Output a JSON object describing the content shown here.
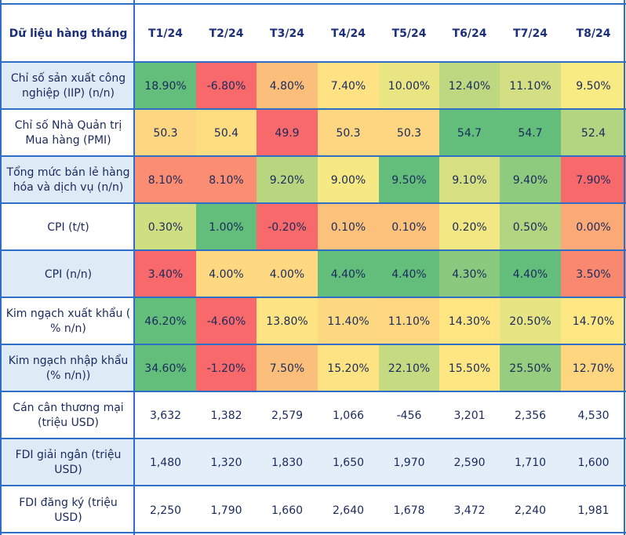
{
  "chart_data": {
    "type": "table",
    "corner_label": "Dữ liệu hàng tháng",
    "columns": [
      "T1/24",
      "T2/24",
      "T3/24",
      "T4/24",
      "T5/24",
      "T6/24",
      "T7/24",
      "T8/24"
    ],
    "rows": [
      {
        "label": "Chỉ số sản xuất công nghiệp (IIP) (n/n)",
        "values": [
          "18.90%",
          "-6.80%",
          "4.80%",
          "7.40%",
          "10.00%",
          "12.40%",
          "11.10%",
          "9.50%"
        ],
        "colors": [
          "#63be7b",
          "#f8696b",
          "#fcbf7b",
          "#ffe283",
          "#e9e583",
          "#bdd881",
          "#d3df82",
          "#f9eb84"
        ]
      },
      {
        "label": "Chỉ số Nhà Quản trị Mua hàng (PMI)",
        "values": [
          "50.3",
          "50.4",
          "49.9",
          "50.3",
          "50.3",
          "54.7",
          "54.7",
          "52.4"
        ],
        "colors": [
          "#fed580",
          "#fedd81",
          "#f8696b",
          "#fed580",
          "#fed580",
          "#63be7b",
          "#63be7b",
          "#b1d580"
        ]
      },
      {
        "label": "Tổng mức bán lẻ hàng hóa và dịch vụ (n/n)",
        "values": [
          "8.10%",
          "8.10%",
          "9.20%",
          "9.00%",
          "9.50%",
          "9.10%",
          "9.40%",
          "7.90%"
        ],
        "colors": [
          "#fa8d72",
          "#fa8d72",
          "#b8d680",
          "#f6e983",
          "#63be7b",
          "#d6e082",
          "#8ecb7e",
          "#f8696b"
        ]
      },
      {
        "label": "CPI (t/t)",
        "values": [
          "0.30%",
          "1.00%",
          "-0.20%",
          "0.10%",
          "0.10%",
          "0.20%",
          "0.50%",
          "0.00%"
        ],
        "colors": [
          "#d0de82",
          "#63be7b",
          "#f8696b",
          "#fcc27c",
          "#fcc27c",
          "#f1e883",
          "#b1d580",
          "#fba977"
        ]
      },
      {
        "label": "CPI (n/n)",
        "values": [
          "3.40%",
          "4.00%",
          "4.00%",
          "4.40%",
          "4.40%",
          "4.30%",
          "4.40%",
          "3.50%"
        ],
        "colors": [
          "#f8696b",
          "#fed981",
          "#fed981",
          "#63be7b",
          "#63be7b",
          "#8bca7e",
          "#63be7b",
          "#f98870"
        ]
      },
      {
        "label": "Kim ngạch xuất khẩu ( % n/n)",
        "values": [
          "46.20%",
          "-4.60%",
          "13.80%",
          "11.40%",
          "11.10%",
          "14.30%",
          "20.50%",
          "14.70%"
        ],
        "colors": [
          "#63be7b",
          "#f8696b",
          "#fee482",
          "#fed981",
          "#fed780",
          "#ffe683",
          "#e6e483",
          "#fee883"
        ]
      },
      {
        "label": "Kim ngạch nhập khẩu (% n/n))",
        "values": [
          "34.60%",
          "-1.20%",
          "7.50%",
          "15.20%",
          "22.10%",
          "15.50%",
          "25.50%",
          "12.70%"
        ],
        "colors": [
          "#63be7b",
          "#f8696b",
          "#fcbf7b",
          "#fee382",
          "#c6da81",
          "#fee683",
          "#96cd7e",
          "#fed680"
        ]
      },
      {
        "label": "Cán cân thương mại (triệu USD)",
        "values": [
          "3,632",
          "1,382",
          "2,579",
          "1,066",
          "-456",
          "3,201",
          "2,356",
          "4,530"
        ],
        "colors": [
          "#ffffff",
          "#ffffff",
          "#ffffff",
          "#ffffff",
          "#ffffff",
          "#ffffff",
          "#ffffff",
          "#ffffff"
        ]
      },
      {
        "label": "FDI giải ngân (triệu USD)",
        "values": [
          "1,480",
          "1,320",
          "1,830",
          "1,650",
          "1,970",
          "2,590",
          "1,710",
          "1,600"
        ],
        "colors": [
          "#e3eef9",
          "#e3eef9",
          "#e3eef9",
          "#e3eef9",
          "#e3eef9",
          "#e3eef9",
          "#e3eef9",
          "#e3eef9"
        ]
      },
      {
        "label": "FDI đăng ký (triệu USD)",
        "values": [
          "2,250",
          "1,790",
          "1,660",
          "2,640",
          "1,678",
          "3,472",
          "2,240",
          "1,981"
        ],
        "colors": [
          "#ffffff",
          "#ffffff",
          "#ffffff",
          "#ffffff",
          "#ffffff",
          "#ffffff",
          "#ffffff",
          "#ffffff"
        ]
      }
    ],
    "label_colors": [
      "#deeaf6",
      "#ffffff",
      "#deeaf6",
      "#ffffff",
      "#deeaf6",
      "#ffffff",
      "#deeaf6",
      "#ffffff",
      "#deeaf6",
      "#ffffff"
    ],
    "grid_color": "#2f6ec6"
  }
}
